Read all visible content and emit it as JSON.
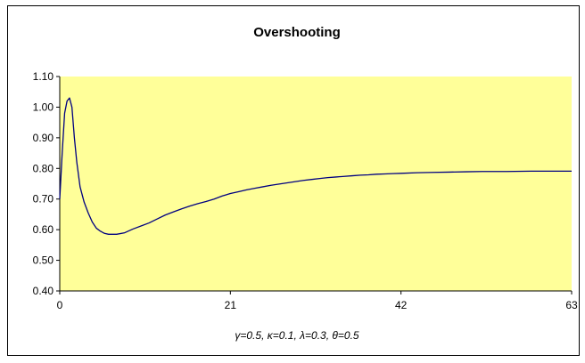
{
  "chart_data": {
    "type": "line",
    "title": "Overshooting",
    "xlabel": "γ=0.5, κ=0.1, λ=0.3, θ=0.5",
    "ylabel": "",
    "xlim": [
      0,
      63
    ],
    "ylim": [
      0.4,
      1.1
    ],
    "x_ticks": [
      "0",
      "21",
      "42",
      "63"
    ],
    "y_ticks": [
      "0.40",
      "0.50",
      "0.60",
      "0.70",
      "0.80",
      "0.90",
      "1.00",
      "1.10"
    ],
    "grid": false,
    "legend": "none",
    "colors": {
      "plot_background": "#FFFF99",
      "line": "#000080"
    },
    "series": [
      {
        "x": [
          0,
          0.3,
          0.6,
          0.9,
          1.2,
          1.5,
          1.8,
          2.1,
          2.5,
          3,
          3.5,
          4,
          4.5,
          5,
          5.5,
          6,
          7,
          8,
          9,
          10,
          11,
          12,
          13,
          14,
          15,
          16,
          17,
          18,
          19,
          20,
          21,
          22,
          23,
          24,
          25,
          26,
          27,
          28,
          29,
          30,
          31,
          32,
          33,
          34,
          35,
          36,
          37,
          38,
          39,
          40,
          41,
          42,
          44,
          46,
          48,
          50,
          52,
          55,
          58,
          60,
          63
        ],
        "values": [
          0.7,
          0.85,
          0.98,
          1.02,
          1.03,
          1.0,
          0.9,
          0.82,
          0.74,
          0.69,
          0.655,
          0.625,
          0.605,
          0.595,
          0.588,
          0.585,
          0.585,
          0.59,
          0.602,
          0.612,
          0.622,
          0.635,
          0.648,
          0.658,
          0.668,
          0.677,
          0.685,
          0.692,
          0.7,
          0.71,
          0.718,
          0.724,
          0.73,
          0.735,
          0.74,
          0.745,
          0.749,
          0.753,
          0.757,
          0.761,
          0.764,
          0.767,
          0.77,
          0.772,
          0.774,
          0.776,
          0.778,
          0.779,
          0.781,
          0.782,
          0.783,
          0.784,
          0.786,
          0.787,
          0.788,
          0.789,
          0.79,
          0.79,
          0.791,
          0.791,
          0.791
        ]
      }
    ]
  }
}
